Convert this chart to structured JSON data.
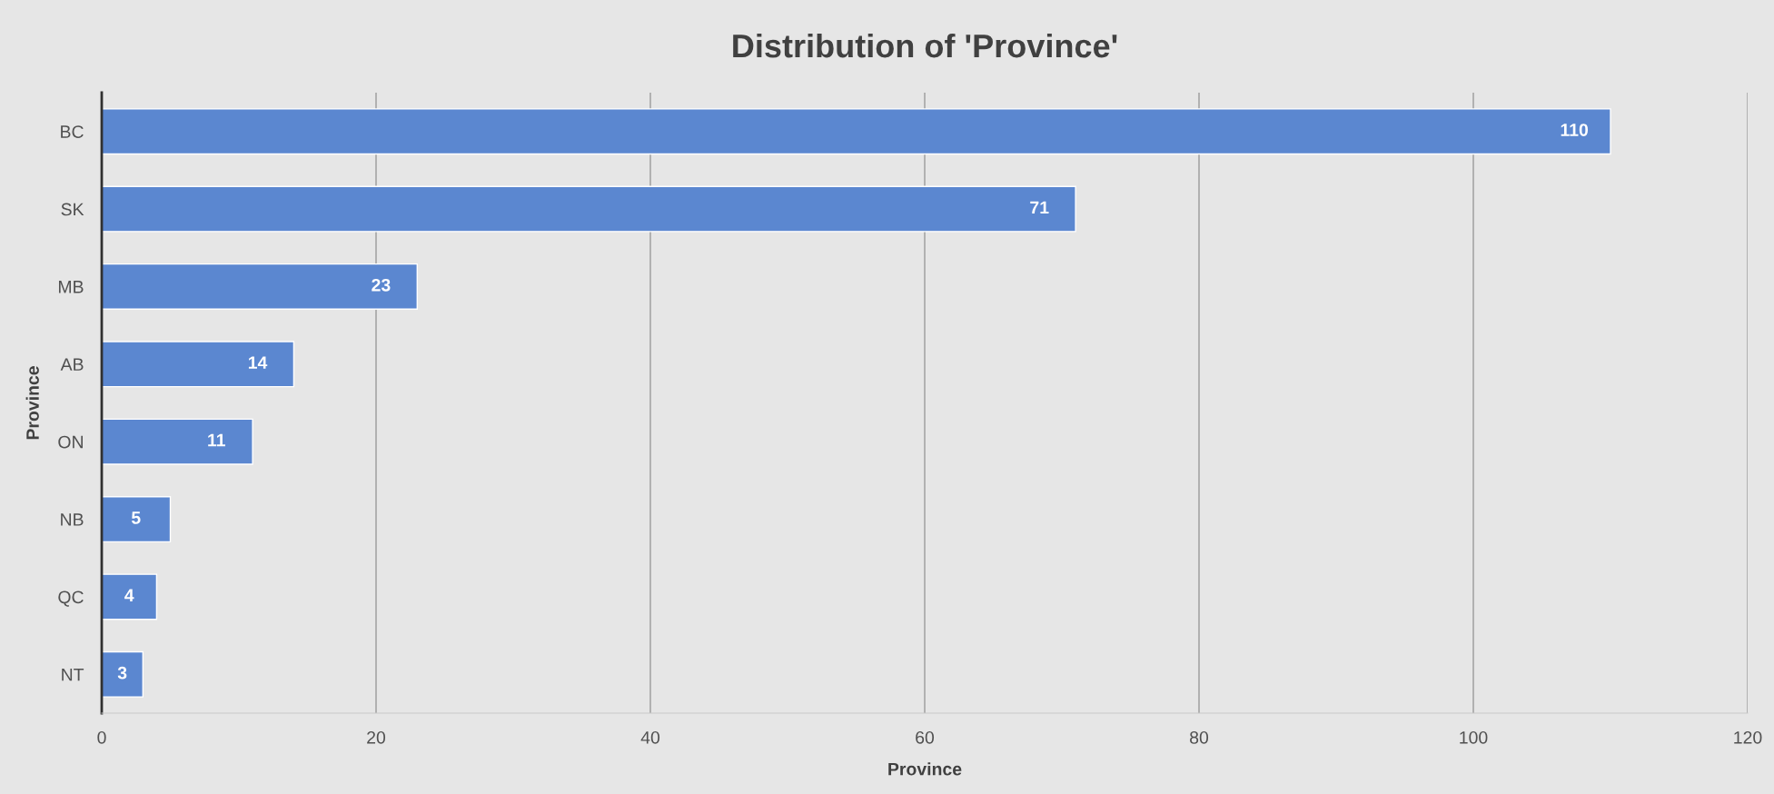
{
  "chart_data": {
    "type": "bar",
    "orientation": "horizontal",
    "title": "Distribution of 'Province'",
    "xlabel": "Province",
    "ylabel": "Province",
    "categories": [
      "BC",
      "SK",
      "MB",
      "AB",
      "ON",
      "NB",
      "QC",
      "NT"
    ],
    "values": [
      110,
      71,
      23,
      14,
      11,
      5,
      4,
      3
    ],
    "color": "#5b87d0",
    "xlim": [
      0,
      120
    ],
    "xticks": [
      0,
      20,
      40,
      60,
      80,
      100,
      120
    ],
    "grid": "x",
    "data_labels": true,
    "legend": false
  }
}
